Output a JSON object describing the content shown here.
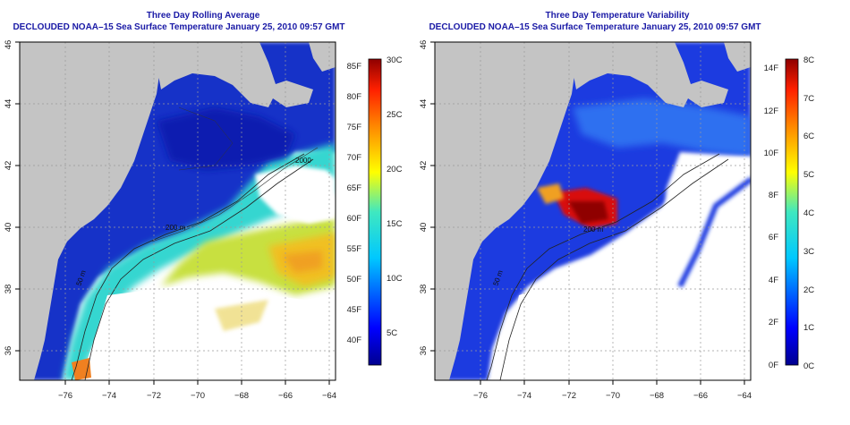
{
  "panels": [
    {
      "title": "Three Day Rolling Average",
      "subtitle": "DECLOUDED NOAA–15 Sea Surface Temperature January 25, 2010 09:57 GMT",
      "x_ticks": [
        "−76",
        "−74",
        "−72",
        "−70",
        "−68",
        "−66",
        "−64"
      ],
      "y_ticks": [
        "36",
        "38",
        "40",
        "42",
        "44",
        "46"
      ],
      "contour_labels": [
        "200 m",
        "2000",
        "50 m"
      ],
      "colorbar": {
        "left_labels": [
          "85F",
          "80F",
          "75F",
          "70F",
          "65F",
          "60F",
          "55F",
          "50F",
          "45F",
          "40F"
        ],
        "right_labels": [
          "30C",
          "25C",
          "20C",
          "15C",
          "10C",
          "5C"
        ]
      }
    },
    {
      "title": "Three Day Temperature Variability",
      "subtitle": "DECLOUDED NOAA–15 Sea Surface Temperature January 25, 2010 09:57 GMT",
      "x_ticks": [
        "−76",
        "−74",
        "−72",
        "−70",
        "−68",
        "−66",
        "−64"
      ],
      "y_ticks": [
        "36",
        "38",
        "40",
        "42",
        "44",
        "46"
      ],
      "contour_labels": [
        "200 m",
        "50 m"
      ],
      "colorbar": {
        "left_labels": [
          "14F",
          "12F",
          "10F",
          "8F",
          "6F",
          "4F",
          "2F",
          "0F"
        ],
        "right_labels": [
          "8C",
          "7C",
          "6C",
          "5C",
          "4C",
          "3C",
          "2C",
          "1C",
          "0C"
        ]
      }
    }
  ],
  "colors": {
    "title": "#1a1aa6",
    "land": "#c4c4c4",
    "no_data": "#ffffff",
    "cold": "#1530c8",
    "warm": "#e8d020",
    "hot": "#9a0000"
  }
}
